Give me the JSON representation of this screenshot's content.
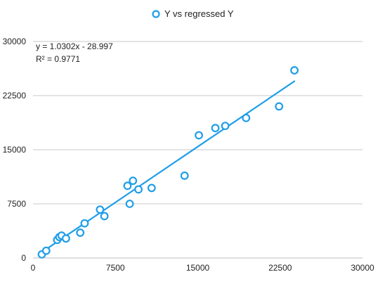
{
  "chart_data": {
    "type": "scatter",
    "title": "",
    "xlabel": "",
    "ylabel": "",
    "xlim": [
      0,
      30000
    ],
    "ylim": [
      0,
      30000
    ],
    "x_ticks": [
      "0",
      "7500",
      "15000",
      "22500",
      "30000"
    ],
    "y_ticks": [
      "0",
      "7500",
      "15000",
      "22500",
      "30000"
    ],
    "grid": "horizontal",
    "legend_position": "top-center",
    "accent_color": "#1f9ee8",
    "series": [
      {
        "name": "Y vs regressed Y",
        "points": [
          {
            "x": 800,
            "y": 500
          },
          {
            "x": 1200,
            "y": 1000
          },
          {
            "x": 2200,
            "y": 2500
          },
          {
            "x": 2400,
            "y": 2900
          },
          {
            "x": 2600,
            "y": 3100
          },
          {
            "x": 3000,
            "y": 2700
          },
          {
            "x": 4300,
            "y": 3500
          },
          {
            "x": 4700,
            "y": 4800
          },
          {
            "x": 6100,
            "y": 6700
          },
          {
            "x": 6500,
            "y": 5800
          },
          {
            "x": 8600,
            "y": 10000
          },
          {
            "x": 8800,
            "y": 7500
          },
          {
            "x": 9100,
            "y": 10700
          },
          {
            "x": 9600,
            "y": 9500
          },
          {
            "x": 10800,
            "y": 9700
          },
          {
            "x": 13800,
            "y": 11400
          },
          {
            "x": 15100,
            "y": 17000
          },
          {
            "x": 16600,
            "y": 18000
          },
          {
            "x": 17500,
            "y": 18300
          },
          {
            "x": 19400,
            "y": 19400
          },
          {
            "x": 22400,
            "y": 21000
          },
          {
            "x": 23800,
            "y": 26000
          }
        ]
      }
    ],
    "trendline": {
      "slope": 1.0302,
      "intercept": -28.997,
      "x_range": [
        800,
        23800
      ],
      "equation_label": "y = 1.0302x - 28.997",
      "r2_label": "R² = 0.9771"
    }
  }
}
